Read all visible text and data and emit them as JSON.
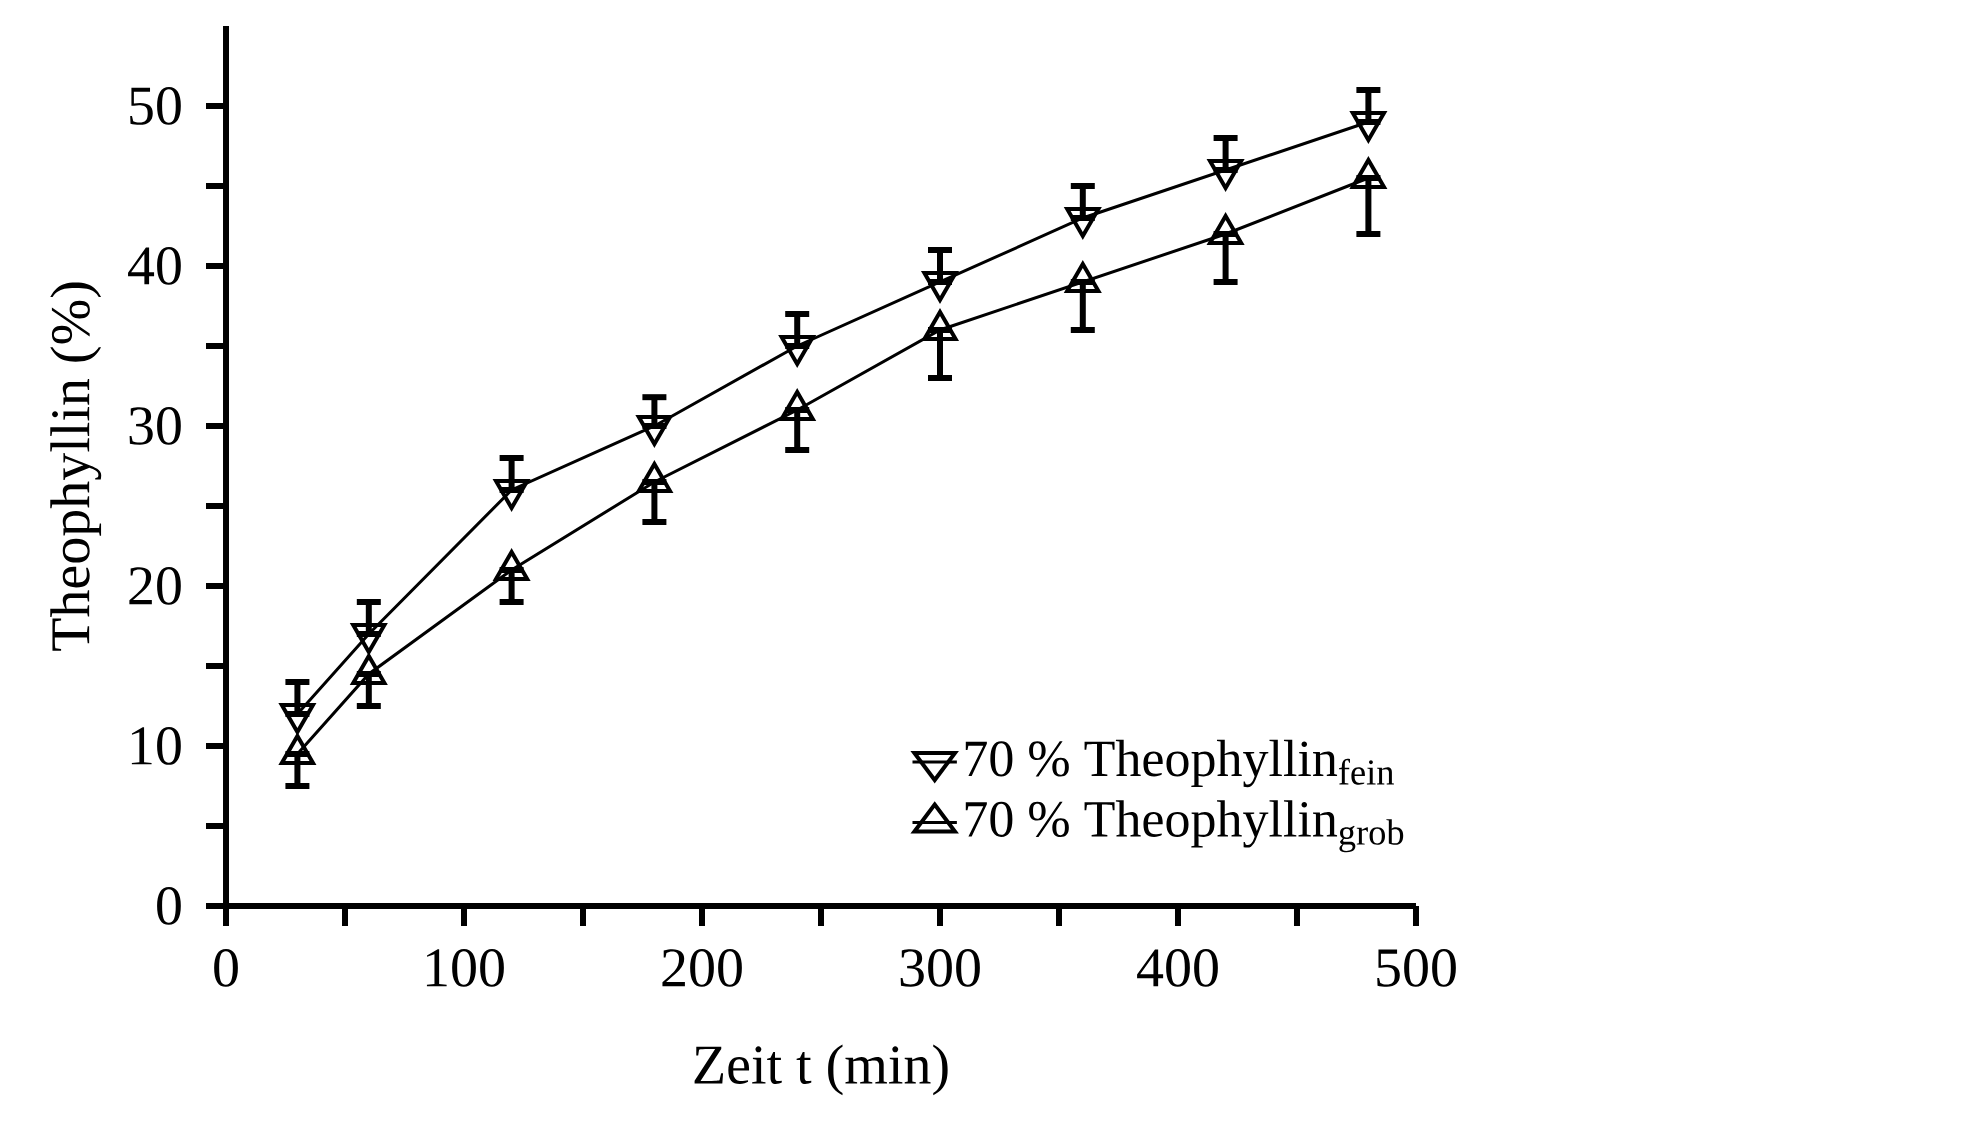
{
  "chart_data": {
    "type": "line",
    "xlabel": "Zeit t (min)",
    "ylabel": "Theophyllin (%)",
    "x": [
      30,
      60,
      120,
      180,
      240,
      300,
      360,
      420,
      480
    ],
    "series": [
      {
        "name": "70 % Theophyllin$_{fein}$",
        "color": "#000000",
        "values": [
          12,
          17,
          26,
          30,
          35,
          39,
          43,
          46,
          49
        ],
        "errors": [
          [
            12,
            14
          ],
          [
            17,
            19
          ],
          [
            26,
            28
          ],
          [
            30,
            31.8
          ],
          [
            35,
            37
          ],
          [
            39,
            41
          ],
          [
            43,
            45
          ],
          [
            46,
            48
          ],
          [
            49,
            51
          ]
        ]
      },
      {
        "name": "70 % Theophyllin$_{grob}$",
        "color": "#000000",
        "values": [
          9.5,
          14.5,
          21,
          26.5,
          31,
          36,
          39,
          42,
          45.5
        ],
        "errors": [
          [
            7.5,
            9.5
          ],
          [
            12.5,
            14.5
          ],
          [
            19,
            21
          ],
          [
            24,
            26.5
          ],
          [
            28.5,
            31
          ],
          [
            33,
            36
          ],
          [
            36,
            39
          ],
          [
            39,
            42
          ],
          [
            42,
            45.5
          ]
        ]
      }
    ],
    "xlim": [
      0,
      500
    ],
    "ylim": [
      0,
      55
    ],
    "xticks": [
      0,
      100,
      200,
      300,
      400,
      500
    ],
    "yticks": [
      0,
      10,
      20,
      30,
      40,
      50
    ],
    "grid": false,
    "legend": "bottom right",
    "marker": "triangle",
    "line_style": "solid"
  }
}
